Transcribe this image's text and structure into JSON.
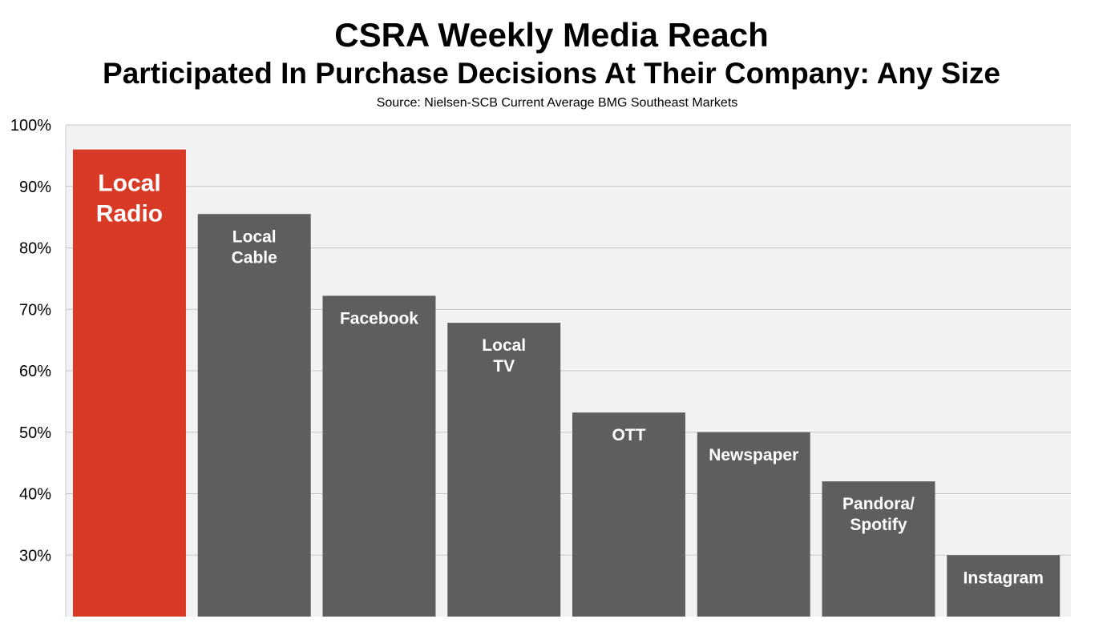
{
  "colors": {
    "highlight_bar": "#d93a26",
    "bar": "#5e5e5e",
    "plot_background": "#f2f2f4",
    "gridline": "#c8c8c8",
    "axis": "#c8c8c8",
    "bar_label": "#ffffff"
  },
  "chart_data": {
    "type": "bar",
    "title": "CSRA Weekly Media Reach",
    "subtitle": "Participated In Purchase Decisions At Their Company: Any Size",
    "source": "Source: Nielsen-SCB  Current Average BMG Southeast Markets",
    "xlabel": "",
    "ylabel": "",
    "categories": [
      [
        "Local",
        "Radio"
      ],
      [
        "Local",
        "Cable"
      ],
      [
        "Facebook"
      ],
      [
        "Local",
        "TV"
      ],
      [
        "OTT"
      ],
      [
        "Newspaper"
      ],
      [
        "Pandora/",
        "Spotify"
      ],
      [
        "Instagram"
      ]
    ],
    "values": [
      96,
      85.5,
      72.2,
      67.8,
      53.2,
      50,
      42,
      30
    ],
    "highlight_index": 0,
    "ylim": [
      20,
      100
    ],
    "yticks": [
      30,
      40,
      50,
      60,
      70,
      80,
      90,
      100
    ],
    "ytick_labels": [
      "30%",
      "40%",
      "50%",
      "60%",
      "70%",
      "80%",
      "90%",
      "100%"
    ],
    "grid": true,
    "legend": "none"
  }
}
